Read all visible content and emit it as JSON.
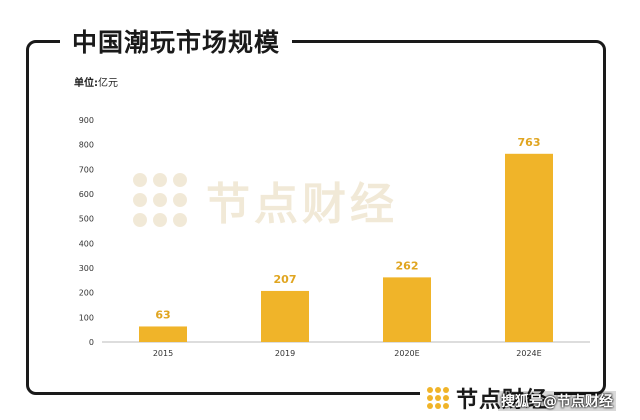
{
  "colors": {
    "accent": "#f0b429",
    "frame": "#1a1a1a"
  },
  "header": {
    "title": "中国潮玩市场规模"
  },
  "unit_label": "单位:亿元",
  "unit_bold": "单位:",
  "unit_value": "亿元",
  "watermark": {
    "text": "节点财经",
    "icon": "dot-grid-logo-icon"
  },
  "footer": {
    "brand": "节点财经",
    "credit": "搜狐号@节点财经"
  },
  "chart_data": {
    "type": "bar",
    "title": "中国潮玩市场规模",
    "categories": [
      "2015",
      "2019",
      "2020E",
      "2024E"
    ],
    "values": [
      63,
      207,
      262,
      763
    ],
    "ylim": [
      0,
      900
    ],
    "yticks": [
      0,
      100,
      200,
      300,
      400,
      500,
      600,
      700,
      800,
      900
    ],
    "ylabel": "单位:亿元",
    "grid": false,
    "data_labels": true
  }
}
